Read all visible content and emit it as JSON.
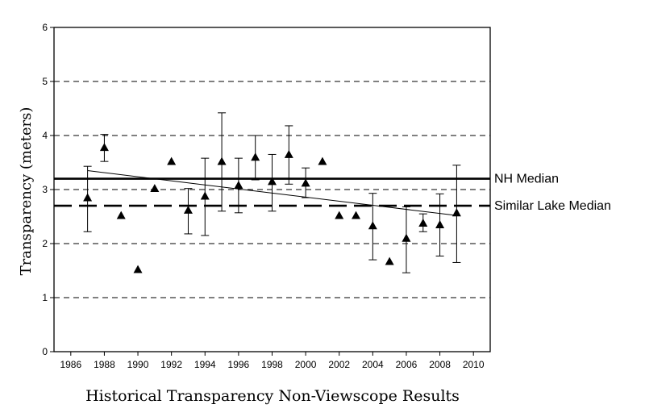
{
  "chart_data": {
    "type": "scatter",
    "title": "",
    "xlabel": "Historical Transparency Non-Viewscope Results",
    "ylabel": "Transparency (meters)",
    "xlim": [
      1985,
      2011
    ],
    "ylim": [
      0,
      6
    ],
    "x_ticks": [
      1986,
      1988,
      1990,
      1992,
      1994,
      1996,
      1998,
      2000,
      2002,
      2004,
      2006,
      2008,
      2010
    ],
    "y_ticks": [
      0,
      1,
      2,
      3,
      4,
      5,
      6
    ],
    "grid": "horizontal dashed",
    "marker": "triangle",
    "points": [
      {
        "year": 1987,
        "value": 2.85,
        "low": 2.22,
        "high": 3.43
      },
      {
        "year": 1988,
        "value": 3.78,
        "low": 3.52,
        "high": 4.02
      },
      {
        "year": 1989,
        "value": 2.52,
        "low": null,
        "high": null
      },
      {
        "year": 1990,
        "value": 1.52,
        "low": null,
        "high": null
      },
      {
        "year": 1991,
        "value": 3.02,
        "low": null,
        "high": null
      },
      {
        "year": 1992,
        "value": 3.52,
        "low": null,
        "high": null
      },
      {
        "year": 1993,
        "value": 2.62,
        "low": 2.18,
        "high": 3.02
      },
      {
        "year": 1994,
        "value": 2.88,
        "low": 2.15,
        "high": 3.58
      },
      {
        "year": 1995,
        "value": 3.52,
        "low": 2.6,
        "high": 4.42
      },
      {
        "year": 1996,
        "value": 3.08,
        "low": 2.57,
        "high": 3.58
      },
      {
        "year": 1997,
        "value": 3.6,
        "low": 3.18,
        "high": 4.0
      },
      {
        "year": 1998,
        "value": 3.15,
        "low": 2.6,
        "high": 3.65
      },
      {
        "year": 1999,
        "value": 3.65,
        "low": 3.1,
        "high": 4.18
      },
      {
        "year": 2000,
        "value": 3.12,
        "low": 2.85,
        "high": 3.4
      },
      {
        "year": 2001,
        "value": 3.52,
        "low": null,
        "high": null
      },
      {
        "year": 2002,
        "value": 2.52,
        "low": null,
        "high": null
      },
      {
        "year": 2003,
        "value": 2.52,
        "low": null,
        "high": null
      },
      {
        "year": 2004,
        "value": 2.33,
        "low": 1.7,
        "high": 2.93
      },
      {
        "year": 2005,
        "value": 1.67,
        "low": null,
        "high": null
      },
      {
        "year": 2006,
        "value": 2.1,
        "low": 1.46,
        "high": 2.68
      },
      {
        "year": 2007,
        "value": 2.38,
        "low": 2.22,
        "high": 2.55
      },
      {
        "year": 2008,
        "value": 2.35,
        "low": 1.77,
        "high": 2.92
      },
      {
        "year": 2009,
        "value": 2.57,
        "low": 1.65,
        "high": 3.45
      }
    ],
    "trend_line": {
      "x": [
        1987,
        2009
      ],
      "y": [
        3.35,
        2.52
      ]
    },
    "reference_lines": [
      {
        "name": "NH Median",
        "value": 3.2,
        "style": "solid"
      },
      {
        "name": "Similar Lake Median",
        "value": 2.7,
        "style": "long-dash"
      }
    ]
  }
}
